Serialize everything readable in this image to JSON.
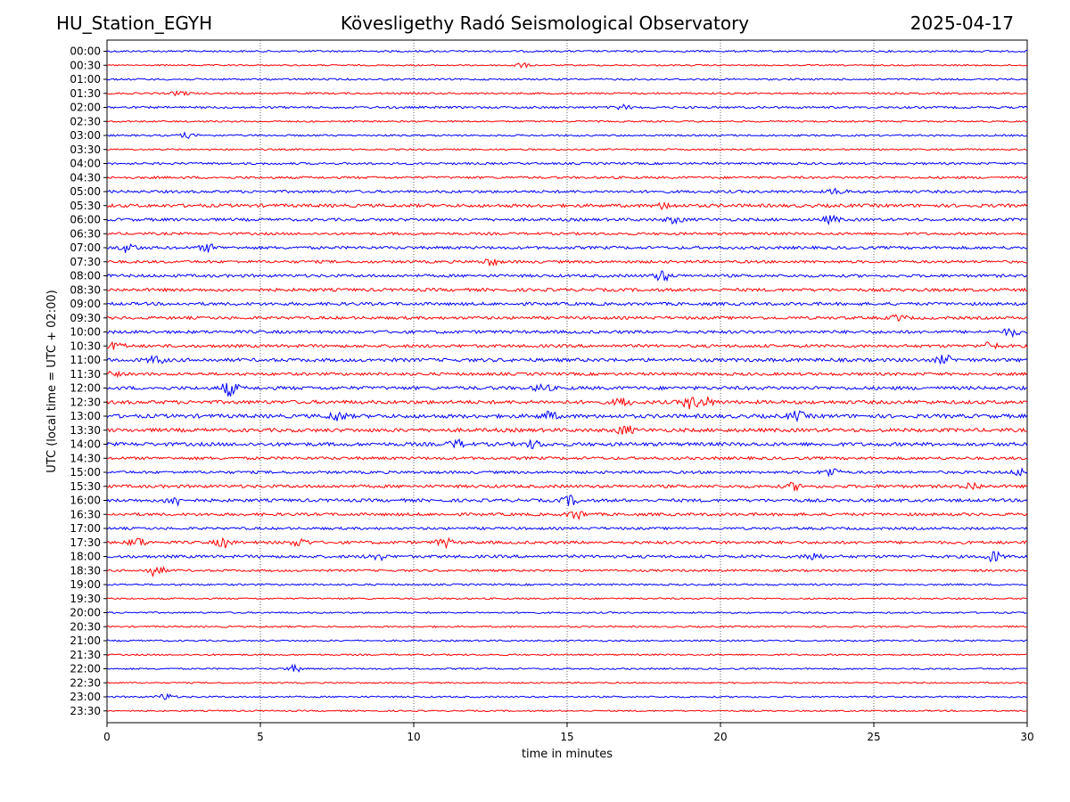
{
  "header": {
    "station": "HU_Station_EGYH",
    "observatory": "Kövesligethy Radó Seismological Observatory",
    "date": "2025-04-17"
  },
  "chart_data": {
    "type": "line",
    "title": "Kövesligethy Radó Seismological Observatory",
    "xlabel": "time in minutes",
    "ylabel": "UTC (local time = UTC + 02:00)",
    "xlim": [
      0,
      30
    ],
    "xticks": [
      "0",
      "5",
      "10",
      "15",
      "20",
      "25",
      "30"
    ],
    "xtick_values": [
      0,
      5,
      10,
      15,
      20,
      25,
      30
    ],
    "grid": "vertical dotted lines at each x tick",
    "row_labels": [
      "00:00",
      "00:30",
      "01:00",
      "01:30",
      "02:00",
      "02:30",
      "03:00",
      "03:30",
      "04:00",
      "04:30",
      "05:00",
      "05:30",
      "06:00",
      "06:30",
      "07:00",
      "07:30",
      "08:00",
      "08:30",
      "09:00",
      "09:30",
      "10:00",
      "10:30",
      "11:00",
      "11:30",
      "12:00",
      "12:30",
      "13:00",
      "13:30",
      "14:00",
      "14:30",
      "15:00",
      "15:30",
      "16:00",
      "16:30",
      "17:00",
      "17:30",
      "18:00",
      "18:30",
      "19:00",
      "19:30",
      "20:00",
      "20:30",
      "21:00",
      "21:30",
      "22:00",
      "22:30",
      "23:00",
      "23:30"
    ],
    "row_colors": [
      "#0000ff",
      "#ff0000"
    ],
    "noise_level": [
      1.0,
      0.8,
      1.0,
      1.0,
      1.2,
      0.9,
      1.0,
      0.9,
      1.2,
      1.3,
      1.5,
      1.8,
      1.6,
      1.4,
      1.6,
      1.5,
      1.6,
      1.7,
      1.7,
      1.6,
      1.7,
      1.7,
      1.9,
      1.6,
      1.9,
      2.0,
      2.1,
      2.0,
      2.0,
      1.6,
      1.5,
      1.7,
      1.7,
      1.6,
      1.4,
      1.6,
      1.6,
      1.2,
      1.0,
      0.9,
      0.9,
      0.9,
      0.9,
      0.9,
      0.9,
      0.8,
      0.9,
      0.8
    ],
    "events": [
      {
        "row": "00:30",
        "minute": 13.5,
        "amp": 2.5
      },
      {
        "row": "01:30",
        "minute": 2.4,
        "amp": 2.5
      },
      {
        "row": "02:00",
        "minute": 16.8,
        "amp": 2.5
      },
      {
        "row": "03:00",
        "minute": 2.6,
        "amp": 2.5
      },
      {
        "row": "05:00",
        "minute": 23.8,
        "amp": 3.0
      },
      {
        "row": "05:30",
        "minute": 18.2,
        "amp": 3.0
      },
      {
        "row": "06:00",
        "minute": 18.5,
        "amp": 3.5
      },
      {
        "row": "06:00",
        "minute": 23.6,
        "amp": 4.0
      },
      {
        "row": "07:00",
        "minute": 0.7,
        "amp": 5.0
      },
      {
        "row": "07:00",
        "minute": 3.3,
        "amp": 4.0
      },
      {
        "row": "07:30",
        "minute": 12.5,
        "amp": 3.5
      },
      {
        "row": "08:00",
        "minute": 18.1,
        "amp": 5.5
      },
      {
        "row": "09:30",
        "minute": 25.8,
        "amp": 3.0
      },
      {
        "row": "10:00",
        "minute": 29.5,
        "amp": 4.0
      },
      {
        "row": "10:30",
        "minute": 0.3,
        "amp": 4.0
      },
      {
        "row": "10:30",
        "minute": 28.8,
        "amp": 3.5
      },
      {
        "row": "11:00",
        "minute": 1.6,
        "amp": 4.0
      },
      {
        "row": "11:00",
        "minute": 27.3,
        "amp": 4.5
      },
      {
        "row": "11:30",
        "minute": 0.1,
        "amp": 4.0
      },
      {
        "row": "12:00",
        "minute": 4.0,
        "amp": 8.0
      },
      {
        "row": "12:00",
        "minute": 14.2,
        "amp": 4.0
      },
      {
        "row": "12:30",
        "minute": 16.8,
        "amp": 4.0
      },
      {
        "row": "12:30",
        "minute": 19.0,
        "amp": 6.0
      },
      {
        "row": "12:30",
        "minute": 19.5,
        "amp": 5.0
      },
      {
        "row": "13:00",
        "minute": 7.5,
        "amp": 5.0
      },
      {
        "row": "13:00",
        "minute": 14.4,
        "amp": 4.5
      },
      {
        "row": "13:00",
        "minute": 22.5,
        "amp": 4.5
      },
      {
        "row": "13:30",
        "minute": 16.9,
        "amp": 5.0
      },
      {
        "row": "14:00",
        "minute": 11.4,
        "amp": 4.0
      },
      {
        "row": "14:00",
        "minute": 13.9,
        "amp": 4.0
      },
      {
        "row": "15:00",
        "minute": 23.6,
        "amp": 5.0
      },
      {
        "row": "15:00",
        "minute": 29.8,
        "amp": 4.0
      },
      {
        "row": "15:30",
        "minute": 22.4,
        "amp": 3.5
      },
      {
        "row": "15:30",
        "minute": 28.2,
        "amp": 4.0
      },
      {
        "row": "16:00",
        "minute": 2.2,
        "amp": 5.5
      },
      {
        "row": "16:00",
        "minute": 15.1,
        "amp": 5.0
      },
      {
        "row": "16:30",
        "minute": 15.3,
        "amp": 5.0
      },
      {
        "row": "17:30",
        "minute": 1.0,
        "amp": 5.0
      },
      {
        "row": "17:30",
        "minute": 3.8,
        "amp": 5.0
      },
      {
        "row": "17:30",
        "minute": 6.3,
        "amp": 4.5
      },
      {
        "row": "17:30",
        "minute": 11.0,
        "amp": 4.5
      },
      {
        "row": "18:00",
        "minute": 8.8,
        "amp": 4.0
      },
      {
        "row": "18:00",
        "minute": 23.0,
        "amp": 4.5
      },
      {
        "row": "18:00",
        "minute": 28.9,
        "amp": 5.5
      },
      {
        "row": "18:30",
        "minute": 1.6,
        "amp": 6.5
      },
      {
        "row": "22:00",
        "minute": 6.1,
        "amp": 3.5
      },
      {
        "row": "23:00",
        "minute": 1.9,
        "amp": 3.5
      }
    ]
  }
}
